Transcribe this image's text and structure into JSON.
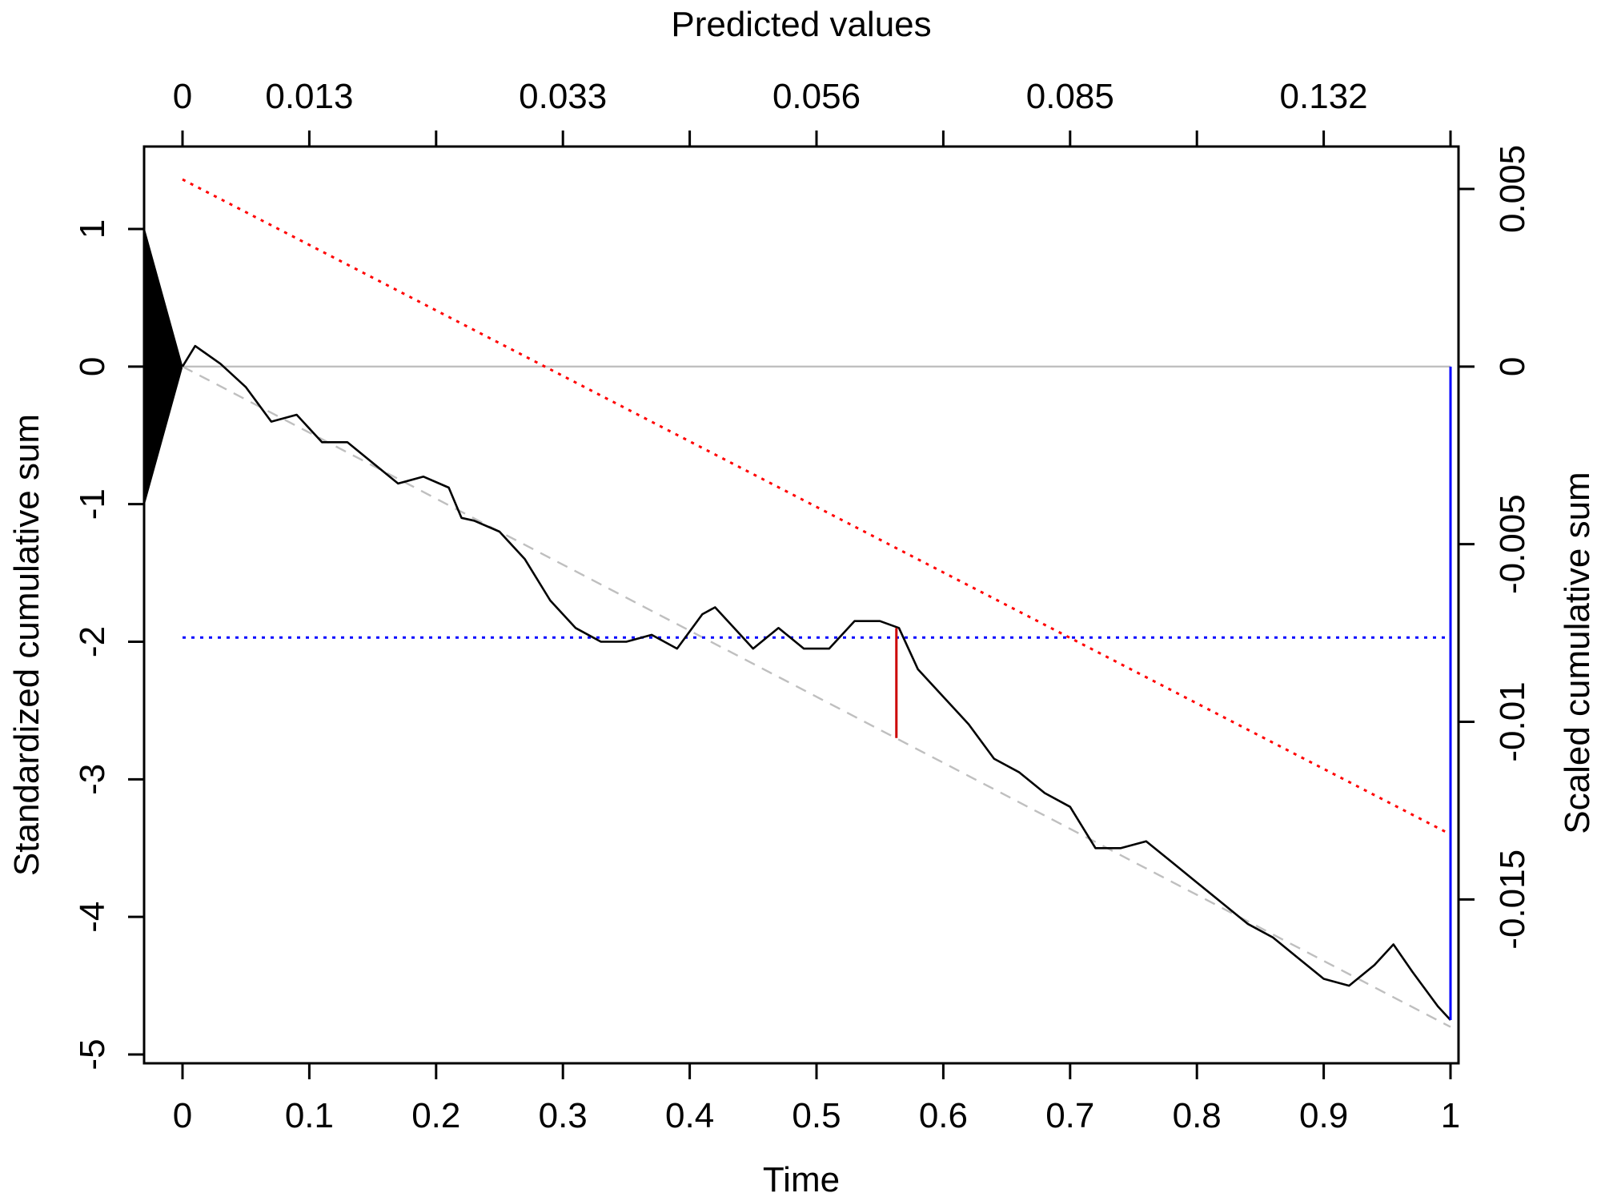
{
  "chart_data": {
    "type": "line",
    "title": "",
    "xlabel": "Time",
    "ylabel": "Standardized cumulative sum",
    "top_axis_label": "Predicted values",
    "right_axis_label": "Scaled cumulative sum",
    "xlim": [
      -0.03,
      1.0
    ],
    "ylim": [
      -5.0,
      1.6
    ],
    "right_ylim": [
      -0.0192,
      0.0061
    ],
    "x_ticks": [
      0,
      0.1,
      0.2,
      0.3,
      0.4,
      0.5,
      0.6,
      0.7,
      0.8,
      0.9,
      1
    ],
    "x_tick_labels": [
      "0",
      "0.1",
      "0.2",
      "0.3",
      "0.4",
      "0.5",
      "0.6",
      "0.7",
      "0.8",
      "0.9",
      "1"
    ],
    "y_ticks": [
      1,
      0,
      -1,
      -2,
      -3,
      -4,
      -5
    ],
    "y_tick_labels": [
      "1",
      "0",
      "-1",
      "-2",
      "-3",
      "-4",
      "-5"
    ],
    "top_ticks": [
      0,
      0.1,
      0.2,
      0.3,
      0.4,
      0.5,
      0.6,
      0.7,
      0.8,
      0.9,
      1.0
    ],
    "top_tick_labels": [
      "0",
      "0.013",
      "0.033",
      "0.056",
      "0.085",
      "0.132"
    ],
    "top_labeled_ticks": [
      0,
      0.1,
      0.3,
      0.5,
      0.7,
      0.9
    ],
    "right_ticks": [
      0.005,
      0,
      -0.005,
      -0.01,
      -0.015
    ],
    "right_tick_labels": [
      "0.005",
      "0",
      "-0.005",
      "-0.01",
      "-0.015"
    ],
    "grid": false,
    "series": [
      {
        "color": "#000000",
        "style": "solid",
        "x": [
          0,
          0.01,
          0.03,
          0.05,
          0.07,
          0.09,
          0.11,
          0.13,
          0.15,
          0.17,
          0.19,
          0.21,
          0.22,
          0.23,
          0.25,
          0.27,
          0.29,
          0.31,
          0.33,
          0.35,
          0.37,
          0.39,
          0.41,
          0.42,
          0.44,
          0.45,
          0.47,
          0.49,
          0.51,
          0.53,
          0.55,
          0.565,
          0.58,
          0.6,
          0.62,
          0.64,
          0.66,
          0.68,
          0.7,
          0.72,
          0.74,
          0.76,
          0.78,
          0.8,
          0.82,
          0.84,
          0.86,
          0.88,
          0.9,
          0.92,
          0.94,
          0.955,
          0.97,
          0.99,
          1.0
        ],
        "y": [
          0,
          0.15,
          0.02,
          -0.15,
          -0.4,
          -0.35,
          -0.55,
          -0.55,
          -0.7,
          -0.85,
          -0.8,
          -0.88,
          -1.1,
          -1.12,
          -1.2,
          -1.4,
          -1.7,
          -1.9,
          -2.0,
          -2.0,
          -1.95,
          -2.05,
          -1.8,
          -1.75,
          -1.95,
          -2.05,
          -1.9,
          -2.05,
          -2.05,
          -1.85,
          -1.85,
          -1.9,
          -2.2,
          -2.4,
          -2.6,
          -2.85,
          -2.95,
          -3.1,
          -3.2,
          -3.5,
          -3.5,
          -3.45,
          -3.6,
          -3.75,
          -3.9,
          -4.05,
          -4.15,
          -4.3,
          -4.45,
          -4.5,
          -4.35,
          -4.2,
          -4.4,
          -4.65,
          -4.75
        ]
      },
      {
        "color": "#bfbfbf",
        "style": "dashed",
        "x": [
          0,
          1
        ],
        "y": [
          0,
          -4.8
        ]
      },
      {
        "color": "#bfbfbf",
        "style": "solid",
        "x": [
          0,
          1
        ],
        "y": [
          0,
          0
        ]
      },
      {
        "color": "#ff0000",
        "style": "dotted",
        "x": [
          0,
          1
        ],
        "y": [
          1.36,
          -3.4
        ]
      },
      {
        "color": "#0000ff",
        "style": "dotted",
        "x": [
          0,
          1
        ],
        "y": [
          -1.97,
          -1.97
        ]
      }
    ],
    "vertical_segments": [
      {
        "color": "#cc0000",
        "x": 0.563,
        "y_from": -2.7,
        "y_to": -1.9
      },
      {
        "color": "#0000ff",
        "x": 1.0,
        "y_from": 0,
        "y_to": -4.75
      }
    ],
    "triangle": {
      "color": "#000000",
      "points": [
        [
          -0.03,
          1
        ],
        [
          -0.03,
          -1
        ],
        [
          0,
          0
        ]
      ]
    }
  }
}
